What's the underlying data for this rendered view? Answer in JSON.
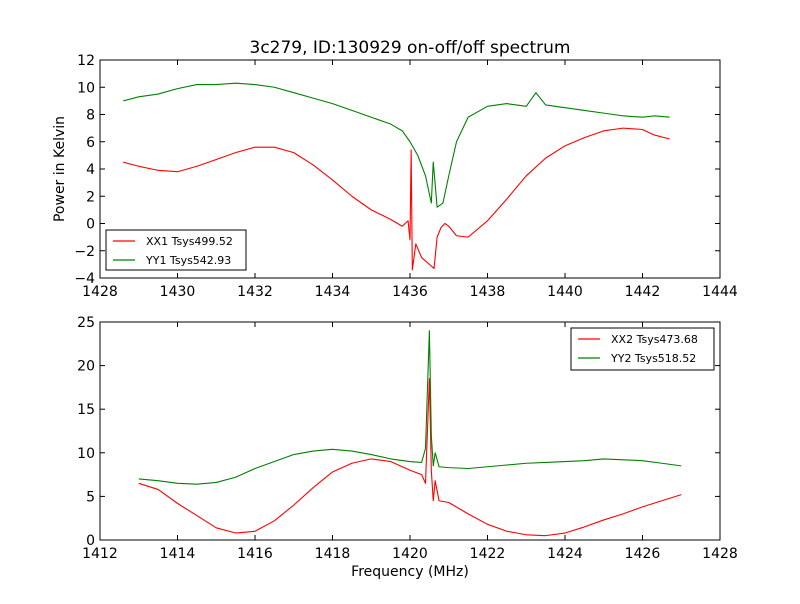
{
  "title": "3c279, ID:130929 on-off/off spectrum",
  "colors": {
    "xx": "#ff0000",
    "yy": "#008000",
    "frame": "#000000",
    "background": "#ffffff"
  },
  "chart_data": [
    {
      "type": "line",
      "panel": "top",
      "title": "3c279, ID:130929 on-off/off spectrum",
      "xlabel": "",
      "ylabel": "Power in Kelvin",
      "xlim": [
        1428,
        1444
      ],
      "ylim": [
        -4,
        12
      ],
      "xticks": [
        "1428",
        "1430",
        "1432",
        "1434",
        "1436",
        "1438",
        "1440",
        "1442",
        "1444"
      ],
      "yticks": [
        "−4",
        "−2",
        "0",
        "2",
        "4",
        "6",
        "8",
        "10",
        "12"
      ],
      "grid": false,
      "legend_position": "lower-left",
      "series": [
        {
          "name": "XX1 Tsys499.52",
          "color": "#ff0000",
          "points": [
            [
              1428.6,
              4.5
            ],
            [
              1429,
              4.2
            ],
            [
              1429.5,
              3.9
            ],
            [
              1430,
              3.8
            ],
            [
              1430.5,
              4.2
            ],
            [
              1431,
              4.7
            ],
            [
              1431.5,
              5.2
            ],
            [
              1432,
              5.6
            ],
            [
              1432.5,
              5.6
            ],
            [
              1433,
              5.2
            ],
            [
              1433.5,
              4.3
            ],
            [
              1434,
              3.2
            ],
            [
              1434.5,
              2.0
            ],
            [
              1435,
              1.0
            ],
            [
              1435.5,
              0.3
            ],
            [
              1435.8,
              -0.2
            ],
            [
              1435.95,
              0.2
            ],
            [
              1436.0,
              -1.2
            ],
            [
              1436.03,
              5.4
            ],
            [
              1436.06,
              -3.4
            ],
            [
              1436.15,
              -1.5
            ],
            [
              1436.3,
              -2.5
            ],
            [
              1436.5,
              -3.0
            ],
            [
              1436.62,
              -3.3
            ],
            [
              1436.7,
              -1.0
            ],
            [
              1436.8,
              -0.3
            ],
            [
              1436.9,
              0.0
            ],
            [
              1437.0,
              -0.2
            ],
            [
              1437.2,
              -0.9
            ],
            [
              1437.5,
              -1.0
            ],
            [
              1438,
              0.2
            ],
            [
              1438.5,
              1.8
            ],
            [
              1439,
              3.5
            ],
            [
              1439.5,
              4.8
            ],
            [
              1440,
              5.7
            ],
            [
              1440.5,
              6.3
            ],
            [
              1441,
              6.8
            ],
            [
              1441.5,
              7.0
            ],
            [
              1442,
              6.9
            ],
            [
              1442.3,
              6.5
            ],
            [
              1442.7,
              6.2
            ]
          ]
        },
        {
          "name": "YY1 Tsys542.93",
          "color": "#008000",
          "points": [
            [
              1428.6,
              9.0
            ],
            [
              1429,
              9.3
            ],
            [
              1429.5,
              9.5
            ],
            [
              1430,
              9.9
            ],
            [
              1430.5,
              10.2
            ],
            [
              1431,
              10.2
            ],
            [
              1431.5,
              10.3
            ],
            [
              1432,
              10.2
            ],
            [
              1432.5,
              10.0
            ],
            [
              1433,
              9.6
            ],
            [
              1433.5,
              9.2
            ],
            [
              1434,
              8.8
            ],
            [
              1434.5,
              8.3
            ],
            [
              1435,
              7.8
            ],
            [
              1435.5,
              7.3
            ],
            [
              1435.8,
              6.8
            ],
            [
              1436.0,
              6.0
            ],
            [
              1436.2,
              5.0
            ],
            [
              1436.4,
              3.5
            ],
            [
              1436.55,
              1.5
            ],
            [
              1436.6,
              4.5
            ],
            [
              1436.7,
              1.2
            ],
            [
              1436.85,
              1.5
            ],
            [
              1437.0,
              3.5
            ],
            [
              1437.2,
              6.0
            ],
            [
              1437.5,
              7.8
            ],
            [
              1438,
              8.6
            ],
            [
              1438.5,
              8.8
            ],
            [
              1439,
              8.6
            ],
            [
              1439.25,
              9.6
            ],
            [
              1439.5,
              8.7
            ],
            [
              1440,
              8.5
            ],
            [
              1440.5,
              8.3
            ],
            [
              1441,
              8.1
            ],
            [
              1441.5,
              7.9
            ],
            [
              1442,
              7.8
            ],
            [
              1442.3,
              7.9
            ],
            [
              1442.7,
              7.8
            ]
          ]
        }
      ]
    },
    {
      "type": "line",
      "panel": "bottom",
      "title": "",
      "xlabel": "Frequency (MHz)",
      "ylabel": "",
      "xlim": [
        1412,
        1428
      ],
      "ylim": [
        0,
        25
      ],
      "xticks": [
        "1412",
        "1414",
        "1416",
        "1418",
        "1420",
        "1422",
        "1424",
        "1426",
        "1428"
      ],
      "yticks": [
        "0",
        "5",
        "10",
        "15",
        "20",
        "25"
      ],
      "grid": false,
      "legend_position": "upper-right",
      "series": [
        {
          "name": "XX2 Tsys473.68",
          "color": "#ff0000",
          "points": [
            [
              1413,
              6.5
            ],
            [
              1413.5,
              5.8
            ],
            [
              1414,
              4.2
            ],
            [
              1414.5,
              2.8
            ],
            [
              1415,
              1.4
            ],
            [
              1415.5,
              0.8
            ],
            [
              1416,
              1.0
            ],
            [
              1416.5,
              2.2
            ],
            [
              1417,
              4.0
            ],
            [
              1417.5,
              6.0
            ],
            [
              1418,
              7.8
            ],
            [
              1418.5,
              8.8
            ],
            [
              1419,
              9.3
            ],
            [
              1419.5,
              9.0
            ],
            [
              1420,
              8.0
            ],
            [
              1420.3,
              7.5
            ],
            [
              1420.4,
              6.5
            ],
            [
              1420.5,
              18.5
            ],
            [
              1420.55,
              8.0
            ],
            [
              1420.6,
              4.5
            ],
            [
              1420.65,
              6.8
            ],
            [
              1420.75,
              4.5
            ],
            [
              1421,
              4.3
            ],
            [
              1421.5,
              3.0
            ],
            [
              1422,
              1.8
            ],
            [
              1422.5,
              1.0
            ],
            [
              1423,
              0.6
            ],
            [
              1423.5,
              0.5
            ],
            [
              1424,
              0.8
            ],
            [
              1424.5,
              1.5
            ],
            [
              1425,
              2.3
            ],
            [
              1425.5,
              3.0
            ],
            [
              1426,
              3.8
            ],
            [
              1426.5,
              4.5
            ],
            [
              1427,
              5.2
            ]
          ]
        },
        {
          "name": "YY2 Tsys518.52",
          "color": "#008000",
          "points": [
            [
              1413,
              7.0
            ],
            [
              1413.5,
              6.8
            ],
            [
              1414,
              6.5
            ],
            [
              1414.5,
              6.4
            ],
            [
              1415,
              6.6
            ],
            [
              1415.5,
              7.2
            ],
            [
              1416,
              8.2
            ],
            [
              1416.5,
              9.0
            ],
            [
              1417,
              9.8
            ],
            [
              1417.5,
              10.2
            ],
            [
              1418,
              10.4
            ],
            [
              1418.5,
              10.2
            ],
            [
              1419,
              9.8
            ],
            [
              1419.5,
              9.3
            ],
            [
              1420,
              9.0
            ],
            [
              1420.3,
              8.9
            ],
            [
              1420.4,
              10.5
            ],
            [
              1420.5,
              24.0
            ],
            [
              1420.55,
              12.0
            ],
            [
              1420.6,
              8.5
            ],
            [
              1420.65,
              10.0
            ],
            [
              1420.75,
              8.4
            ],
            [
              1421,
              8.3
            ],
            [
              1421.5,
              8.2
            ],
            [
              1422,
              8.4
            ],
            [
              1422.5,
              8.6
            ],
            [
              1423,
              8.8
            ],
            [
              1423.5,
              8.9
            ],
            [
              1424,
              9.0
            ],
            [
              1424.5,
              9.1
            ],
            [
              1425,
              9.3
            ],
            [
              1425.5,
              9.2
            ],
            [
              1426,
              9.1
            ],
            [
              1426.5,
              8.8
            ],
            [
              1427,
              8.5
            ]
          ]
        }
      ]
    }
  ]
}
